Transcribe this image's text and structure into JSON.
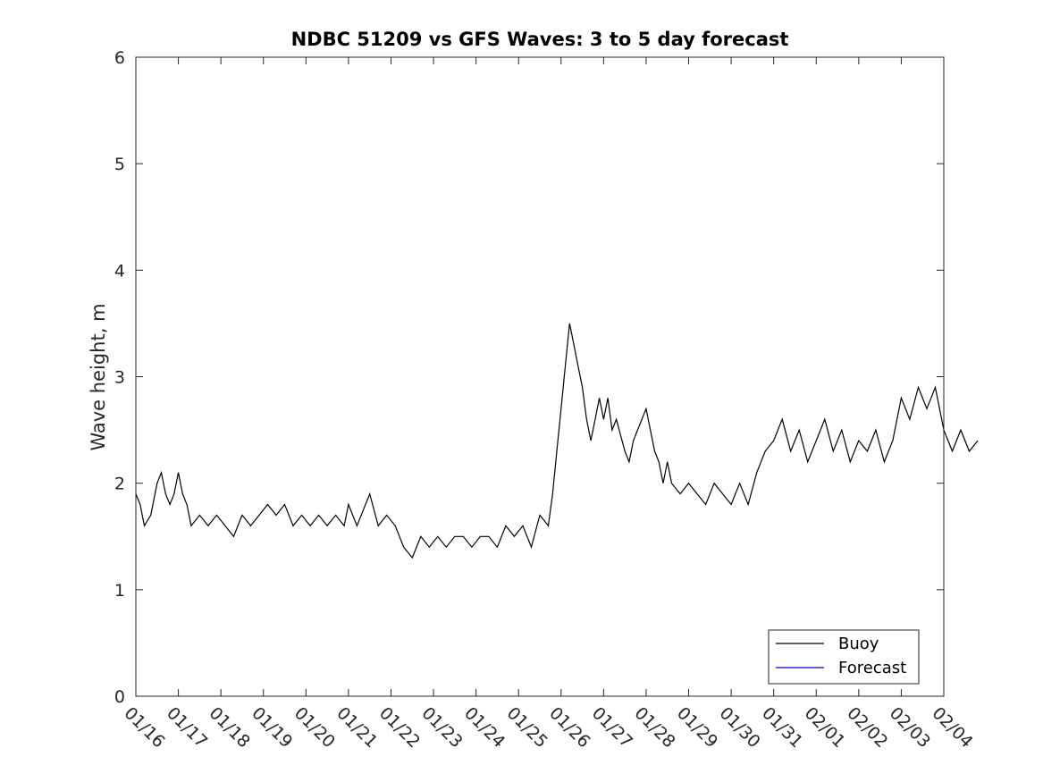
{
  "chart_data": {
    "type": "line",
    "title": "NDBC 51209 vs GFS Waves: 3 to 5 day forecast",
    "xlabel": "",
    "ylabel": "Wave height, m",
    "x_ticks": [
      "01/16",
      "01/17",
      "01/18",
      "01/19",
      "01/20",
      "01/21",
      "01/22",
      "01/23",
      "01/24",
      "01/25",
      "01/26",
      "01/27",
      "01/28",
      "01/29",
      "01/30",
      "01/31",
      "02/01",
      "02/02",
      "02/03",
      "02/04"
    ],
    "ylim": [
      0,
      6
    ],
    "y_ticks": [
      0,
      1,
      2,
      3,
      4,
      5,
      6
    ],
    "xlim_days": [
      0,
      19
    ],
    "legend": {
      "position": "bottom-right",
      "entries": [
        {
          "label": "Buoy",
          "color": "#000000"
        },
        {
          "label": "Forecast",
          "color": "#0000cc"
        }
      ]
    },
    "colors": {
      "buoy": "#000000",
      "forecast": "#0000cc",
      "marker": "#0000ff",
      "axis": "#262626"
    },
    "series": [
      {
        "name": "Buoy",
        "points": [
          [
            0.0,
            1.9
          ],
          [
            0.1,
            1.8
          ],
          [
            0.2,
            1.6
          ],
          [
            0.35,
            1.7
          ],
          [
            0.5,
            2.0
          ],
          [
            0.6,
            2.1
          ],
          [
            0.7,
            1.9
          ],
          [
            0.8,
            1.8
          ],
          [
            0.9,
            1.9
          ],
          [
            1.0,
            2.1
          ],
          [
            1.1,
            1.9
          ],
          [
            1.2,
            1.8
          ],
          [
            1.3,
            1.6
          ],
          [
            1.5,
            1.7
          ],
          [
            1.7,
            1.6
          ],
          [
            1.9,
            1.7
          ],
          [
            2.1,
            1.6
          ],
          [
            2.3,
            1.5
          ],
          [
            2.5,
            1.7
          ],
          [
            2.7,
            1.6
          ],
          [
            2.9,
            1.7
          ],
          [
            3.1,
            1.8
          ],
          [
            3.3,
            1.7
          ],
          [
            3.5,
            1.8
          ],
          [
            3.7,
            1.6
          ],
          [
            3.9,
            1.7
          ],
          [
            4.1,
            1.6
          ],
          [
            4.3,
            1.7
          ],
          [
            4.5,
            1.6
          ],
          [
            4.7,
            1.7
          ],
          [
            4.9,
            1.6
          ],
          [
            5.0,
            1.8
          ],
          [
            5.2,
            1.6
          ],
          [
            5.5,
            1.9
          ],
          [
            5.7,
            1.6
          ],
          [
            5.9,
            1.7
          ],
          [
            6.1,
            1.6
          ],
          [
            6.2,
            1.5
          ],
          [
            6.3,
            1.4
          ],
          [
            6.5,
            1.3
          ],
          [
            6.7,
            1.5
          ],
          [
            6.9,
            1.4
          ],
          [
            7.1,
            1.5
          ],
          [
            7.3,
            1.4
          ],
          [
            7.5,
            1.5
          ],
          [
            7.7,
            1.5
          ],
          [
            7.9,
            1.4
          ],
          [
            8.1,
            1.5
          ],
          [
            8.3,
            1.5
          ],
          [
            8.5,
            1.4
          ],
          [
            8.7,
            1.6
          ],
          [
            8.9,
            1.5
          ],
          [
            9.1,
            1.6
          ],
          [
            9.3,
            1.4
          ],
          [
            9.5,
            1.7
          ],
          [
            9.7,
            1.6
          ],
          [
            9.8,
            1.9
          ],
          [
            9.9,
            2.3
          ],
          [
            10.0,
            2.7
          ],
          [
            10.1,
            3.1
          ],
          [
            10.2,
            3.5
          ],
          [
            10.3,
            3.3
          ],
          [
            10.4,
            3.1
          ],
          [
            10.5,
            2.9
          ],
          [
            10.6,
            2.6
          ],
          [
            10.7,
            2.4
          ],
          [
            10.8,
            2.6
          ],
          [
            10.9,
            2.8
          ],
          [
            11.0,
            2.6
          ],
          [
            11.1,
            2.8
          ],
          [
            11.2,
            2.5
          ],
          [
            11.3,
            2.6
          ],
          [
            11.5,
            2.3
          ],
          [
            11.6,
            2.2
          ],
          [
            11.7,
            2.4
          ],
          [
            11.8,
            2.5
          ],
          [
            11.9,
            2.6
          ],
          [
            12.0,
            2.7
          ],
          [
            12.1,
            2.5
          ],
          [
            12.2,
            2.3
          ],
          [
            12.3,
            2.2
          ],
          [
            12.4,
            2.0
          ],
          [
            12.5,
            2.2
          ],
          [
            12.6,
            2.0
          ],
          [
            12.8,
            1.9
          ],
          [
            13.0,
            2.0
          ],
          [
            13.2,
            1.9
          ],
          [
            13.4,
            1.8
          ],
          [
            13.6,
            2.0
          ],
          [
            13.8,
            1.9
          ],
          [
            14.0,
            1.8
          ],
          [
            14.2,
            2.0
          ],
          [
            14.4,
            1.8
          ],
          [
            14.6,
            2.1
          ],
          [
            14.8,
            2.3
          ],
          [
            15.0,
            2.4
          ],
          [
            15.2,
            2.6
          ],
          [
            15.4,
            2.3
          ],
          [
            15.6,
            2.5
          ],
          [
            15.8,
            2.2
          ],
          [
            16.0,
            2.4
          ],
          [
            16.2,
            2.6
          ],
          [
            16.4,
            2.3
          ],
          [
            16.6,
            2.5
          ],
          [
            16.8,
            2.2
          ],
          [
            17.0,
            2.4
          ],
          [
            17.2,
            2.3
          ],
          [
            17.4,
            2.5
          ],
          [
            17.6,
            2.2
          ],
          [
            17.8,
            2.4
          ],
          [
            18.0,
            2.8
          ],
          [
            18.2,
            2.6
          ],
          [
            18.4,
            2.9
          ],
          [
            18.6,
            2.7
          ],
          [
            18.8,
            2.9
          ],
          [
            19.0,
            2.5
          ],
          [
            19.2,
            2.3
          ],
          [
            19.4,
            2.5
          ],
          [
            19.6,
            2.3
          ],
          [
            19.8,
            2.4
          ]
        ]
      }
    ]
  },
  "legend_labels": {
    "buoy": "Buoy",
    "forecast": "Forecast"
  }
}
